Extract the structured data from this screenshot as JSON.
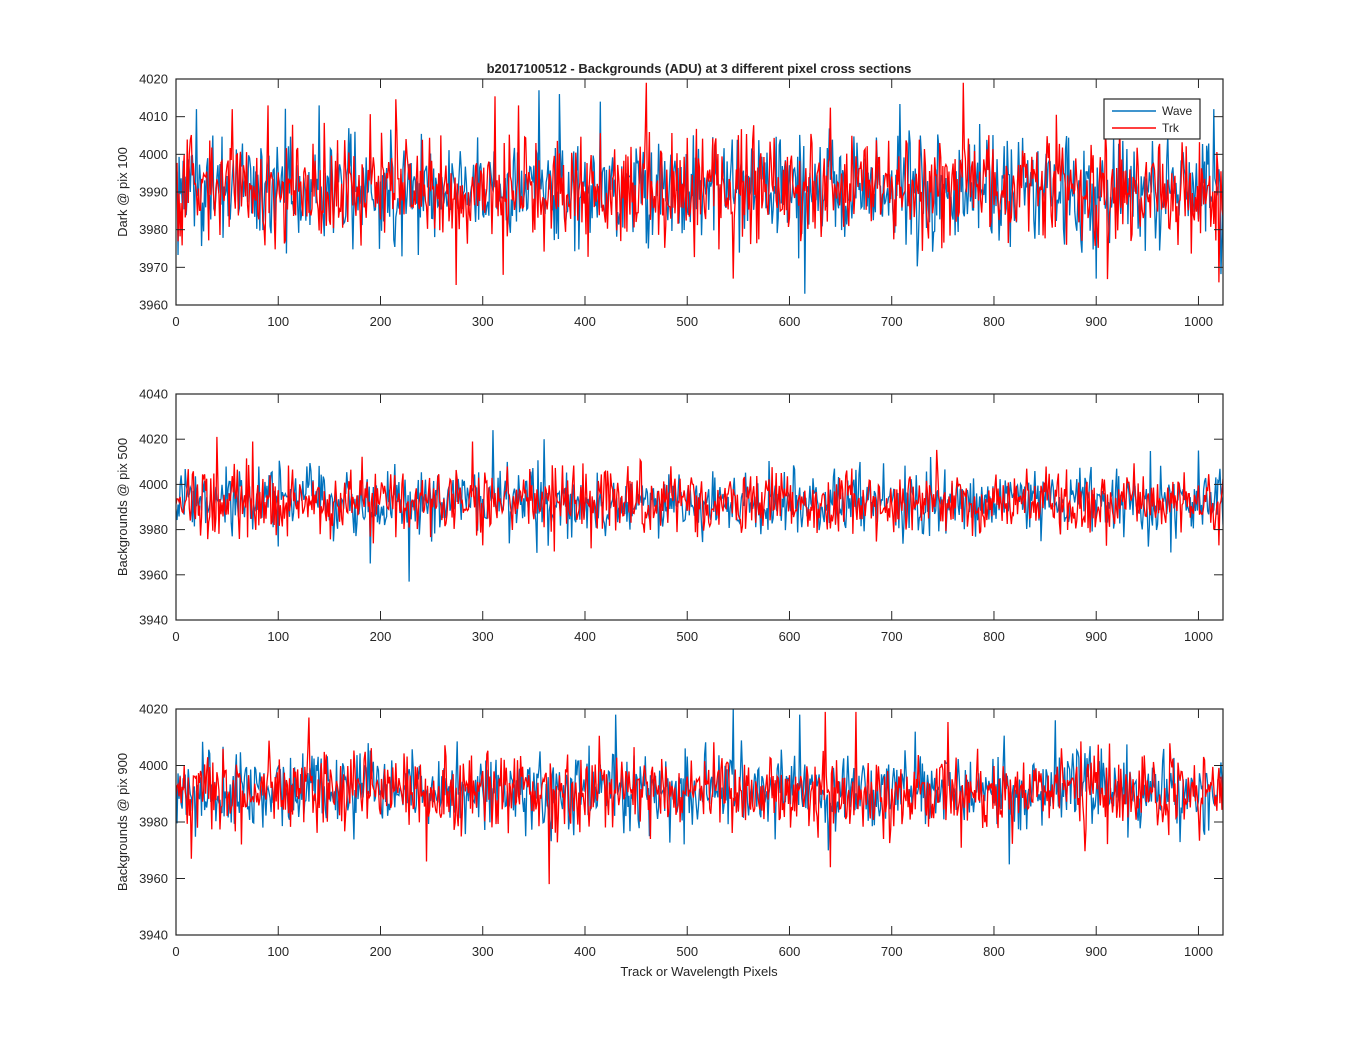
{
  "figure": {
    "title": "b2017100512 - Backgrounds (ADU) at 3 different pixel cross sections",
    "xlabel": "Track or Wavelength Pixels"
  },
  "legend": {
    "placement": "top-right",
    "entries": [
      {
        "name": "Wave",
        "color": "#0072BD"
      },
      {
        "name": "Trk",
        "color": "#FF0000"
      }
    ]
  },
  "chart_data": [
    {
      "type": "line",
      "ylabel": "Dark @ pix 100",
      "xlim": [
        0,
        1024
      ],
      "ylim": [
        3960,
        4020
      ],
      "xticks": [
        0,
        100,
        200,
        300,
        400,
        500,
        600,
        700,
        800,
        900,
        1000
      ],
      "yticks": [
        3960,
        3970,
        3980,
        3990,
        4000,
        4010,
        4020
      ],
      "grid": false,
      "mean_level": 3991,
      "noise_sigma": 7,
      "series": [
        {
          "name": "Wave",
          "color": "#0072BD",
          "spikes": [
            [
              20,
              4012
            ],
            [
              140,
              4013
            ],
            [
              355,
              4017
            ],
            [
              375,
              4016
            ],
            [
              415,
              4014
            ],
            [
              615,
              3963
            ],
            [
              900,
              3967
            ],
            [
              1015,
              4012
            ]
          ]
        },
        {
          "name": "Trk",
          "color": "#FF0000",
          "spikes": [
            [
              55,
              4012
            ],
            [
              90,
              4013
            ],
            [
              320,
              3968
            ],
            [
              335,
              4013
            ],
            [
              460,
              4019
            ],
            [
              545,
              3967
            ],
            [
              770,
              4019
            ],
            [
              1020,
              3966
            ]
          ]
        }
      ]
    },
    {
      "type": "line",
      "ylabel": "Backgrounds @ pix 500",
      "xlim": [
        0,
        1024
      ],
      "ylim": [
        3940,
        4040
      ],
      "xticks": [
        0,
        100,
        200,
        300,
        400,
        500,
        600,
        700,
        800,
        900,
        1000
      ],
      "yticks": [
        3940,
        3960,
        3980,
        4000,
        4020,
        4040
      ],
      "grid": false,
      "mean_level": 3992,
      "noise_sigma": 7,
      "series": [
        {
          "name": "Wave",
          "color": "#0072BD",
          "spikes": [
            [
              190,
              3965
            ],
            [
              228,
              3957
            ],
            [
              310,
              4024
            ],
            [
              360,
              4020
            ],
            [
              1000,
              4015
            ]
          ]
        },
        {
          "name": "Trk",
          "color": "#FF0000",
          "spikes": [
            [
              40,
              4021
            ],
            [
              75,
              4019
            ],
            [
              290,
              4019
            ],
            [
              300,
              3973
            ],
            [
              455,
              4010
            ],
            [
              1020,
              3973
            ]
          ]
        }
      ]
    },
    {
      "type": "line",
      "ylabel": "Backgrounds @ pix 900",
      "xlim": [
        0,
        1024
      ],
      "ylim": [
        3940,
        4020
      ],
      "xticks": [
        0,
        100,
        200,
        300,
        400,
        500,
        600,
        700,
        800,
        900,
        1000
      ],
      "yticks": [
        3940,
        3960,
        3980,
        4000,
        4020
      ],
      "grid": false,
      "mean_level": 3991,
      "noise_sigma": 7,
      "series": [
        {
          "name": "Wave",
          "color": "#0072BD",
          "spikes": [
            [
              430,
              4018
            ],
            [
              545,
              4020
            ],
            [
              610,
              4018
            ],
            [
              815,
              3965
            ],
            [
              860,
              4016
            ]
          ]
        },
        {
          "name": "Trk",
          "color": "#FF0000",
          "spikes": [
            [
              15,
              3967
            ],
            [
              130,
              4017
            ],
            [
              245,
              3966
            ],
            [
              365,
              3958
            ],
            [
              640,
              3964
            ],
            [
              635,
              4019
            ],
            [
              665,
              4019
            ]
          ]
        }
      ]
    }
  ]
}
